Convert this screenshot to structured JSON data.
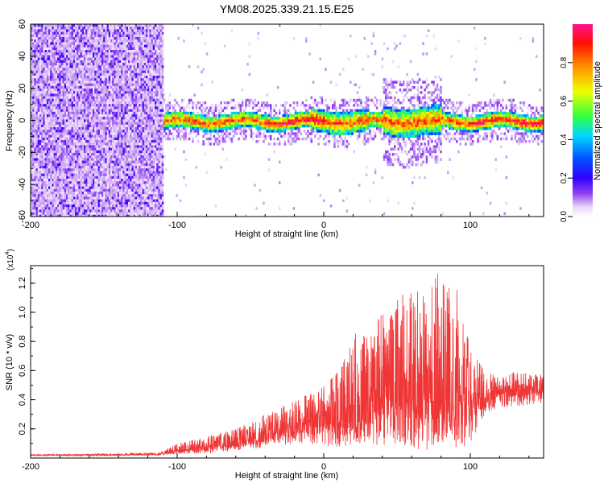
{
  "title": "YM08.2025.339.21.15.E25",
  "chart_data": [
    {
      "type": "heatmap",
      "name": "spectrogram",
      "xlabel": "Height of straight line (km)",
      "ylabel": "Frequency (Hz)",
      "xlim": [
        -200,
        150
      ],
      "ylim": [
        -60,
        60
      ],
      "xticks": [
        -200,
        -100,
        0,
        100
      ],
      "xtick_labels": [
        "-200",
        "-100",
        "0",
        "100"
      ],
      "yticks": [
        60,
        40,
        20,
        0,
        -20,
        -40,
        -60
      ],
      "ytick_labels": [
        "60",
        "40",
        "20",
        "0",
        "-20",
        "-40",
        "-60"
      ],
      "colorbar": {
        "label": "Normalized spectral amplitude",
        "range": [
          0,
          1
        ],
        "ticks": [
          0.0,
          0.2,
          0.4,
          0.6,
          0.8
        ],
        "tick_labels": [
          "0.0",
          "0.2",
          "0.4",
          "0.6",
          "0.8"
        ]
      },
      "noise_region_x": [
        -200,
        -110
      ],
      "signal_band": {
        "x_start": -113,
        "x_end": 150,
        "center_freq": 0,
        "half_width": 5,
        "peak_amplitude": 0.95
      },
      "color_stops": [
        "#ffffff",
        "#e8d8f8",
        "#9040f0",
        "#3000ff",
        "#0050ff",
        "#00d8ff",
        "#30ff40",
        "#f0ff00",
        "#ff9000",
        "#ff1000",
        "#ff1090"
      ]
    },
    {
      "type": "line",
      "name": "snr",
      "xlabel": "Height of straight line (km)",
      "ylabel": "SNR (10 * v/v)",
      "scale_label": "(x10",
      "scale_exponent": "4",
      "xlim": [
        -200,
        150
      ],
      "ylim": [
        0,
        1.32
      ],
      "xticks": [
        -200,
        -100,
        0,
        100
      ],
      "xtick_labels": [
        "-200",
        "-100",
        "0",
        "100"
      ],
      "yticks": [
        0.2,
        0.4,
        0.6,
        0.8,
        1.0,
        1.2
      ],
      "ytick_labels": [
        "0.2",
        "0.4",
        "0.6",
        "0.8",
        "1.0",
        "1.2"
      ],
      "line_color": "#ef3535",
      "envelope_x": [
        -200,
        -150,
        -112,
        -100,
        -80,
        -60,
        -40,
        -20,
        0,
        10,
        20,
        30,
        40,
        50,
        60,
        70,
        80,
        90,
        100,
        110,
        120,
        130,
        140,
        150
      ],
      "envelope_max": [
        0.025,
        0.03,
        0.04,
        0.1,
        0.15,
        0.2,
        0.3,
        0.4,
        0.5,
        0.6,
        0.85,
        0.9,
        1.0,
        1.1,
        1.2,
        1.15,
        1.3,
        1.2,
        0.75,
        0.6,
        0.55,
        0.6,
        0.58,
        0.57
      ],
      "envelope_min": [
        0.015,
        0.015,
        0.02,
        0.03,
        0.03,
        0.05,
        0.07,
        0.1,
        0.08,
        0.07,
        0.08,
        0.1,
        0.08,
        0.1,
        0.06,
        0.05,
        0.1,
        0.05,
        0.1,
        0.3,
        0.34,
        0.35,
        0.36,
        0.38
      ],
      "baseline": [
        0.02,
        0.02,
        0.025,
        0.05,
        0.07,
        0.1,
        0.15,
        0.2,
        0.25,
        0.25,
        0.3,
        0.35,
        0.4,
        0.45,
        0.45,
        0.45,
        0.45,
        0.4,
        0.35,
        0.4,
        0.45,
        0.47,
        0.47,
        0.47
      ]
    }
  ]
}
